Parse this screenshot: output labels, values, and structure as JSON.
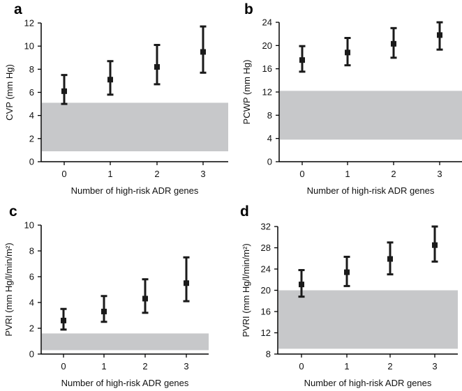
{
  "chart_data": [
    {
      "panel": "a",
      "type": "scatter",
      "x": [
        "0",
        "1",
        "2",
        "3"
      ],
      "values": [
        6.1,
        7.1,
        8.2,
        9.5
      ],
      "error_low": [
        5.0,
        5.8,
        6.7,
        7.7
      ],
      "error_high": [
        7.5,
        8.7,
        10.1,
        11.7
      ],
      "reference_band": [
        0.9,
        5.1
      ],
      "xlabel": "Number of high-risk ADR genes",
      "ylabel": "CVP (mm Hg)",
      "ylim": [
        0,
        12
      ],
      "yticks": [
        0,
        2,
        4,
        6,
        8,
        10,
        12
      ],
      "grid": false
    },
    {
      "panel": "b",
      "type": "scatter",
      "x": [
        "0",
        "1",
        "2",
        "3"
      ],
      "values": [
        17.5,
        18.8,
        20.3,
        21.8
      ],
      "error_low": [
        15.5,
        16.6,
        17.9,
        19.3
      ],
      "error_high": [
        19.9,
        21.3,
        23.0,
        24.0
      ],
      "reference_band": [
        3.8,
        12.2
      ],
      "xlabel": "Number of high-risk ADR genes",
      "ylabel": "PCWP (mm Hg)",
      "ylim": [
        0,
        24
      ],
      "yticks": [
        0,
        4,
        8,
        12,
        16,
        20,
        24
      ],
      "grid": false
    },
    {
      "panel": "c",
      "type": "scatter",
      "x": [
        "0",
        "1",
        "2",
        "3"
      ],
      "values": [
        2.6,
        3.3,
        4.3,
        5.5
      ],
      "error_low": [
        1.9,
        2.5,
        3.2,
        4.1
      ],
      "error_high": [
        3.5,
        4.5,
        5.8,
        7.5
      ],
      "reference_band": [
        0.3,
        1.6
      ],
      "xlabel": "Number of high-risk ADR genes",
      "ylabel": "PVRI (mm Hg/l/min/m²)",
      "ylim": [
        0,
        10
      ],
      "yticks": [
        0,
        2,
        4,
        6,
        8,
        10
      ],
      "grid": false
    },
    {
      "panel": "d",
      "type": "scatter",
      "x": [
        "0",
        "1",
        "2",
        "3"
      ],
      "values": [
        21.1,
        23.4,
        25.9,
        28.5
      ],
      "error_low": [
        18.8,
        20.8,
        23.0,
        25.4
      ],
      "error_high": [
        23.8,
        26.3,
        29.0,
        32.0
      ],
      "reference_band": [
        9.0,
        20.0
      ],
      "xlabel": "Number of high-risk ADR genes",
      "ylabel": "PVRI (mm Hg/l/min/m²)",
      "ylim": [
        8,
        32
      ],
      "yticks": [
        8,
        12,
        16,
        20,
        24,
        28,
        32
      ],
      "grid": false
    }
  ]
}
